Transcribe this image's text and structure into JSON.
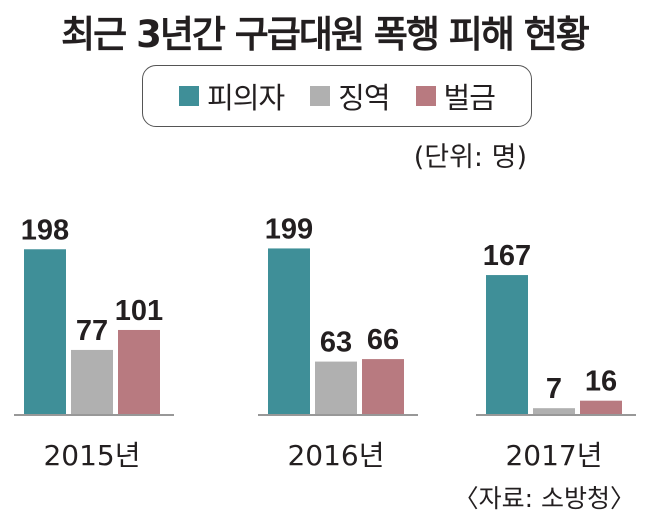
{
  "chart_data": {
    "type": "bar",
    "title": "최근 3년간 구급대원 폭행 피해 현황",
    "unit_note": "(단위: 명)",
    "source": "〈자료: 소방청〉",
    "categories": [
      "2015년",
      "2016년",
      "2017년"
    ],
    "series": [
      {
        "name": "피의자",
        "color": "#3f8f98",
        "values": [
          198,
          199,
          167
        ]
      },
      {
        "name": "징역",
        "color": "#b0b0b0",
        "values": [
          77,
          63,
          7
        ]
      },
      {
        "name": "벌금",
        "color": "#b87a80",
        "values": [
          101,
          66,
          16
        ]
      }
    ],
    "ylim": [
      0,
      200
    ],
    "grid": false,
    "legend_position": "top-center"
  }
}
